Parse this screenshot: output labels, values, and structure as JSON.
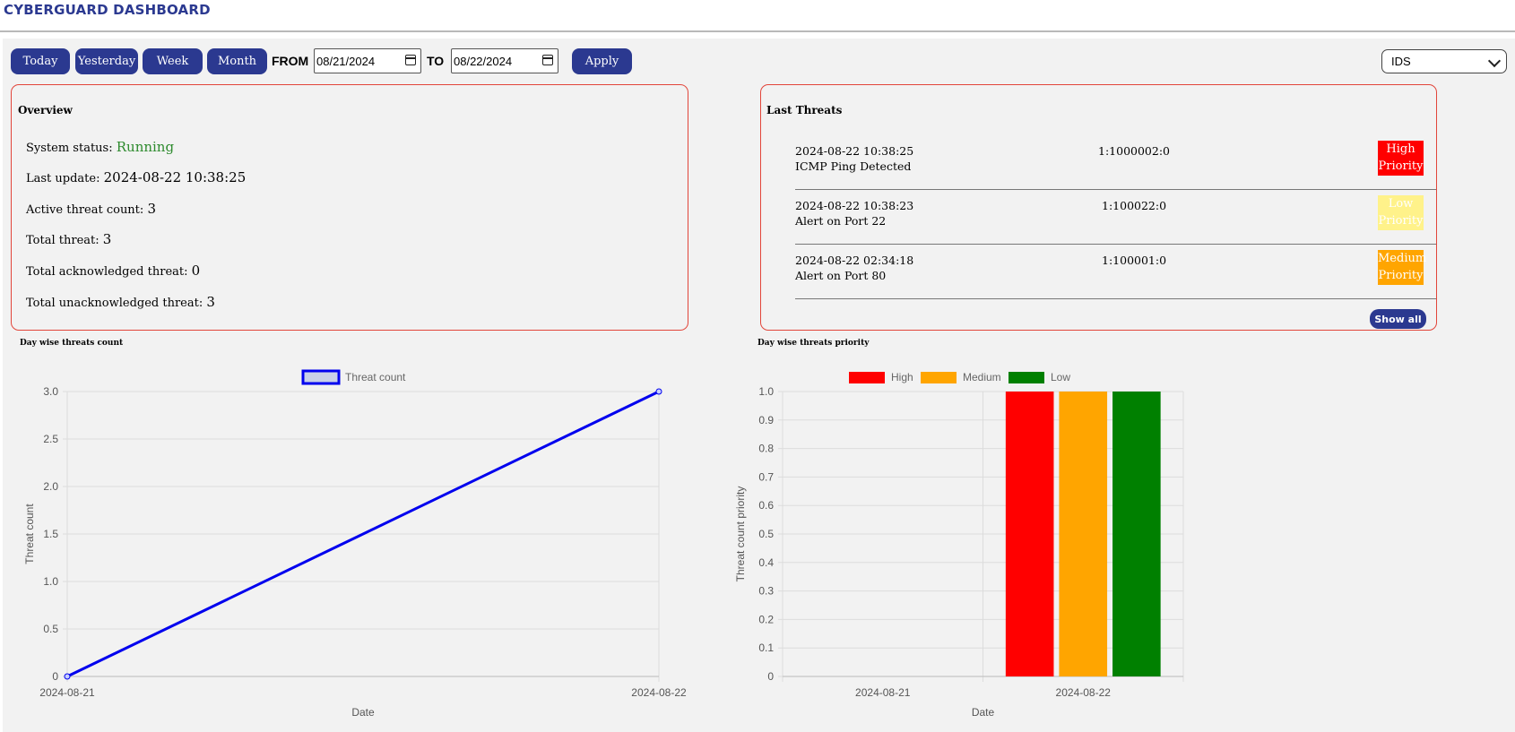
{
  "app": {
    "title": "CYBERGUARD DASHBOARD"
  },
  "toolbar": {
    "today": "Today",
    "yesterday": "Yesterday",
    "week": "Week",
    "month": "Month",
    "from_label": "FROM",
    "from_value": "08/21/2024",
    "to_label": "TO",
    "to_value": "08/22/2024",
    "apply": "Apply",
    "source_select": "IDS"
  },
  "overview": {
    "title": "Overview",
    "status_label": "System status:",
    "status_value": "Running",
    "last_update_label": "Last update:",
    "last_update_value": "2024-08-22 10:38:25",
    "active_label": "Active threat count:",
    "active_value": "3",
    "total_label": "Total threat:",
    "total_value": "3",
    "ack_label": "Total acknowledged threat:",
    "ack_value": "0",
    "unack_label": "Total unacknowledged threat:",
    "unack_value": "3"
  },
  "last_threats": {
    "title": "Last Threats",
    "items": [
      {
        "timestamp": "2024-08-22 10:38:25",
        "name": "ICMP Ping Detected",
        "sid": "1:1000002:0",
        "priority_line1": "High",
        "priority_line2": "Priority",
        "priority_color": "#ff0000"
      },
      {
        "timestamp": "2024-08-22 10:38:23",
        "name": "Alert on Port 22",
        "sid": "1:100022:0",
        "priority_line1": "Low",
        "priority_line2": "Priority",
        "priority_color": "#fff28a"
      },
      {
        "timestamp": "2024-08-22 02:34:18",
        "name": "Alert on Port 80",
        "sid": "1:100001:0",
        "priority_line1": "Medium",
        "priority_line2": "Priority",
        "priority_color": "#ffa500"
      }
    ],
    "show_all": "Show all"
  },
  "charts": {
    "count_title": "Day wise threats count",
    "priority_title": "Day wise threats priority"
  },
  "chart_data": [
    {
      "type": "line",
      "title": "",
      "x": [
        "2024-08-21",
        "2024-08-22"
      ],
      "series": [
        {
          "name": "Threat count",
          "values": [
            0,
            3
          ],
          "color": "#0000ee"
        }
      ],
      "xlabel": "Date",
      "ylabel": "Threat count",
      "ylim": [
        0,
        3
      ],
      "yticks": [
        "0",
        "0.5",
        "1.0",
        "1.5",
        "2.0",
        "2.5",
        "3.0"
      ],
      "grid": true,
      "legend": "top"
    },
    {
      "type": "bar",
      "title": "",
      "categories": [
        "2024-08-21",
        "2024-08-22"
      ],
      "series": [
        {
          "name": "High",
          "values": [
            0,
            1
          ],
          "color": "#ff0000"
        },
        {
          "name": "Medium",
          "values": [
            0,
            1
          ],
          "color": "#ffa500"
        },
        {
          "name": "Low",
          "values": [
            0,
            1
          ],
          "color": "#008000"
        }
      ],
      "xlabel": "Date",
      "ylabel": "Threat count priority",
      "ylim": [
        0,
        1
      ],
      "yticks": [
        "0",
        "0.1",
        "0.2",
        "0.3",
        "0.4",
        "0.5",
        "0.6",
        "0.7",
        "0.8",
        "0.9",
        "1.0"
      ],
      "grid": true,
      "legend": "top"
    }
  ]
}
